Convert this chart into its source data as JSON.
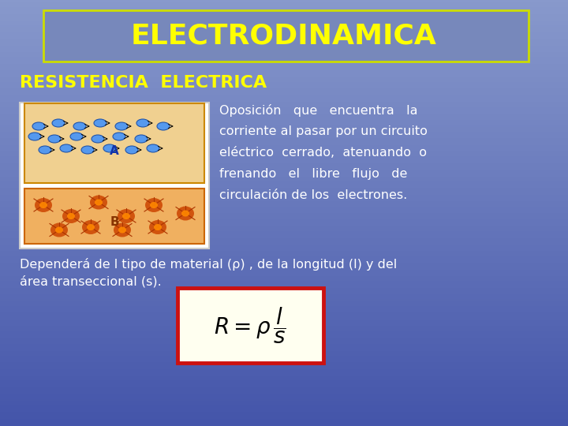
{
  "bg_color_top": "#8899cc",
  "bg_color_bottom": "#4455aa",
  "title_text": "ELECTRODINAMICA",
  "title_color": "#ffff00",
  "title_box_facecolor": "#7788bb",
  "title_border_color": "#ccdd00",
  "subtitle_text": "RESISTENCIA  ELECTRICA",
  "subtitle_color": "#ffff00",
  "body_lines": [
    "Oposición   que   encuentra   la",
    "corriente al pasar por un circuito",
    "eléctrico  cerrado,  atenuando  o",
    "frenando   el   libre   flujo   de",
    "circulación de los  electrones."
  ],
  "body_color": "#ffffff",
  "bottom_text1": "Dependerá de l tipo de material (ρ) , de la longitud (l) y del",
  "bottom_text2": "área transeccional (s).",
  "formula_box_color": "#fffff0",
  "formula_border_color": "#cc1111",
  "img_outer_color": "#ffffff",
  "img_A_bg": "#f0d090",
  "img_A_border": "#cc8800",
  "img_B_bg": "#f0b060",
  "img_B_border": "#cc6600",
  "electron_color": "#5599ee",
  "atom_color": "#cc4400",
  "atom_center_color": "#ff8800"
}
